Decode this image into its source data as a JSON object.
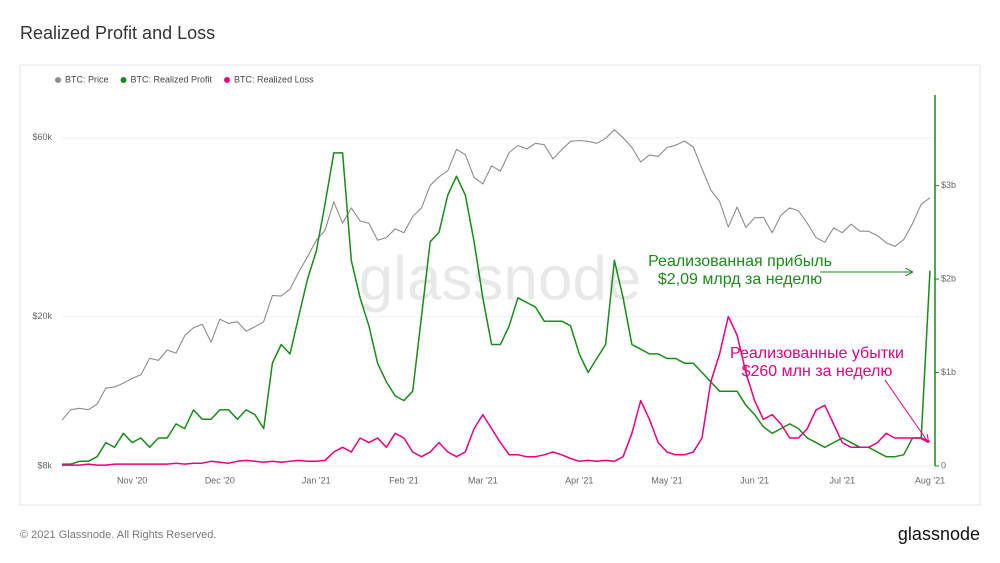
{
  "chart_data": {
    "type": "line",
    "title": "Realized Profit and Loss",
    "copyright": "© 2021 Glassnode. All Rights Reserved.",
    "logo": "glassnode",
    "watermark": "glassnode",
    "categories": [
      null,
      null,
      null,
      null,
      null,
      null,
      null,
      null,
      "Nov '20",
      null,
      null,
      null,
      null,
      null,
      null,
      null,
      null,
      null,
      "Dec '20",
      null,
      null,
      null,
      null,
      null,
      null,
      null,
      null,
      null,
      null,
      "Jan '21",
      null,
      null,
      null,
      null,
      null,
      null,
      null,
      null,
      null,
      "Feb '21",
      null,
      null,
      null,
      null,
      null,
      null,
      null,
      null,
      "Mar '21",
      null,
      null,
      null,
      null,
      null,
      null,
      null,
      null,
      null,
      null,
      "Apr '21",
      null,
      null,
      null,
      null,
      null,
      null,
      null,
      null,
      null,
      "May '21",
      null,
      null,
      null,
      null,
      null,
      null,
      null,
      null,
      null,
      "Jun '21",
      null,
      null,
      null,
      null,
      null,
      null,
      null,
      null,
      null,
      "Jul '21",
      null,
      null,
      null,
      null,
      null,
      null,
      null,
      null,
      null,
      "Aug '21"
    ],
    "ylim": [
      8000,
      78000
    ],
    "ylog": true,
    "yticks": [
      {
        "value": 8000,
        "label": "$8k"
      },
      {
        "value": 20000,
        "label": "$20k"
      },
      {
        "value": 60000,
        "label": "$60k"
      }
    ],
    "y2lim": [
      0,
      3.97
    ],
    "y2ticks": [
      0,
      {
        "value": 1,
        "label": "$1b"
      },
      {
        "value": 2,
        "label": "$2b"
      },
      {
        "value": 3,
        "label": "$3b"
      }
    ],
    "y2color": "#1a8a1a",
    "grid": true,
    "series": [
      {
        "name": "BTC: Price",
        "color": "#8c8c8c",
        "axis": "y",
        "values": [
          10600,
          11300,
          11400,
          11300,
          11700,
          12900,
          13000,
          13300,
          13700,
          14000,
          15500,
          15300,
          16300,
          16000,
          17800,
          18700,
          19100,
          17100,
          19700,
          19200,
          19400,
          18300,
          18800,
          19400,
          22800,
          22700,
          23700,
          26300,
          28900,
          32000,
          34000,
          40500,
          35500,
          39000,
          36000,
          35500,
          32000,
          32500,
          34300,
          33500,
          37000,
          39000,
          44800,
          47200,
          49000,
          55900,
          54100,
          47000,
          45200,
          50500,
          48900,
          54800,
          57200,
          56000,
          58000,
          57500,
          52700,
          55800,
          58700,
          59000,
          58700,
          58000,
          59800,
          63000,
          60000,
          56500,
          51700,
          54000,
          53500,
          56500,
          57300,
          58800,
          56700,
          49600,
          43500,
          40600,
          34700,
          39200,
          34600,
          36700,
          36800,
          33500,
          37300,
          39000,
          38300,
          35500,
          32500,
          31600,
          34500,
          33500,
          35300,
          33800,
          33800,
          32900,
          31500,
          30800,
          32100,
          35400,
          39900,
          41500
        ]
      },
      {
        "name": "BTC: Realized Profit",
        "color": "#1a8a1a",
        "axis": "y2",
        "values": [
          0.02,
          0.02,
          0.05,
          0.05,
          0.1,
          0.25,
          0.2,
          0.35,
          0.25,
          0.3,
          0.2,
          0.3,
          0.3,
          0.45,
          0.4,
          0.6,
          0.5,
          0.5,
          0.6,
          0.6,
          0.5,
          0.6,
          0.55,
          0.4,
          1.1,
          1.3,
          1.2,
          1.6,
          2.0,
          2.3,
          2.8,
          3.35,
          3.35,
          2.2,
          1.8,
          1.5,
          1.1,
          0.9,
          0.75,
          0.7,
          0.8,
          1.6,
          2.4,
          2.5,
          2.9,
          3.1,
          2.9,
          2.4,
          1.8,
          1.3,
          1.3,
          1.5,
          1.8,
          1.75,
          1.7,
          1.55,
          1.55,
          1.55,
          1.5,
          1.2,
          1.0,
          1.15,
          1.3,
          2.2,
          1.8,
          1.3,
          1.25,
          1.2,
          1.2,
          1.15,
          1.15,
          1.1,
          1.1,
          1.0,
          0.9,
          0.8,
          0.8,
          0.8,
          0.65,
          0.55,
          0.42,
          0.35,
          0.4,
          0.45,
          0.4,
          0.3,
          0.25,
          0.2,
          0.25,
          0.3,
          0.25,
          0.2,
          0.2,
          0.15,
          0.1,
          0.1,
          0.12,
          0.3,
          0.3,
          2.09
        ]
      },
      {
        "name": "BTC: Realized Loss",
        "color": "#e6007e",
        "axis": "y2",
        "values": [
          0.01,
          0.01,
          0.01,
          0.02,
          0.01,
          0.01,
          0.02,
          0.02,
          0.02,
          0.02,
          0.02,
          0.02,
          0.02,
          0.03,
          0.02,
          0.03,
          0.03,
          0.05,
          0.04,
          0.03,
          0.05,
          0.06,
          0.05,
          0.04,
          0.05,
          0.04,
          0.05,
          0.06,
          0.05,
          0.05,
          0.06,
          0.15,
          0.2,
          0.15,
          0.3,
          0.25,
          0.3,
          0.2,
          0.35,
          0.3,
          0.15,
          0.1,
          0.15,
          0.25,
          0.15,
          0.1,
          0.15,
          0.4,
          0.55,
          0.4,
          0.25,
          0.12,
          0.12,
          0.1,
          0.1,
          0.12,
          0.15,
          0.12,
          0.08,
          0.05,
          0.06,
          0.05,
          0.06,
          0.05,
          0.1,
          0.35,
          0.7,
          0.5,
          0.25,
          0.15,
          0.12,
          0.12,
          0.15,
          0.3,
          0.9,
          1.2,
          1.6,
          1.4,
          1.0,
          0.7,
          0.5,
          0.55,
          0.45,
          0.3,
          0.3,
          0.4,
          0.6,
          0.65,
          0.45,
          0.25,
          0.2,
          0.2,
          0.2,
          0.25,
          0.35,
          0.3,
          0.3,
          0.3,
          0.3,
          0.26
        ]
      }
    ],
    "annotations": [
      {
        "lines": [
          "Реализованная прибыль",
          "$2,09 млрд за неделю"
        ],
        "color": "#1a8a1a"
      },
      {
        "lines": [
          "Реализованные убытки",
          "$260 млн за неделю"
        ],
        "color": "#e6007e"
      }
    ]
  }
}
